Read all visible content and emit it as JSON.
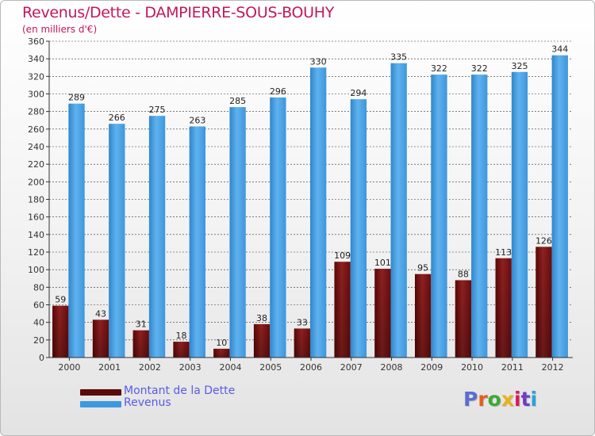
{
  "header": {
    "title": "Revenus/Dette - DAMPIERRE-SOUS-BOUHY",
    "subtitle": "(en milliers d'€)"
  },
  "colors": {
    "dette": "#7a1010",
    "revenus": "#4ea6e6",
    "title": "#c2185b",
    "legend_text": "#5a5ae6",
    "grid": "#333333"
  },
  "legend": {
    "items": [
      {
        "label": "Montant de la Dette",
        "color": "#5a0a0a"
      },
      {
        "label": "Revenus",
        "color": "#3d98e0"
      }
    ]
  },
  "logo": {
    "text": "Proxiti",
    "letter_colors": [
      "#5b6ecf",
      "#e85d1a",
      "#3aaa35",
      "#e8b21a",
      "#d81b60",
      "#6b3ec2",
      "#2aa3d9"
    ]
  },
  "chart_data": {
    "type": "bar",
    "title": "Revenus/Dette - DAMPIERRE-SOUS-BOUHY",
    "subtitle": "(en milliers d'€)",
    "xlabel": "",
    "ylabel": "",
    "categories": [
      "2000",
      "2001",
      "2002",
      "2003",
      "2004",
      "2005",
      "2006",
      "2007",
      "2008",
      "2009",
      "2010",
      "2011",
      "2012"
    ],
    "series": [
      {
        "name": "Montant de la Dette",
        "values": [
          59,
          43,
          31,
          18,
          10,
          38,
          33,
          109,
          101,
          95,
          88,
          113,
          126
        ]
      },
      {
        "name": "Revenus",
        "values": [
          289,
          266,
          275,
          263,
          285,
          296,
          330,
          294,
          335,
          322,
          322,
          325,
          344
        ]
      }
    ],
    "ylim": [
      0,
      360
    ],
    "yticks": [
      0,
      20,
      40,
      60,
      80,
      100,
      120,
      140,
      160,
      180,
      200,
      220,
      240,
      260,
      280,
      300,
      320,
      340,
      360
    ],
    "grid": true,
    "legend_position": "bottom-left"
  }
}
